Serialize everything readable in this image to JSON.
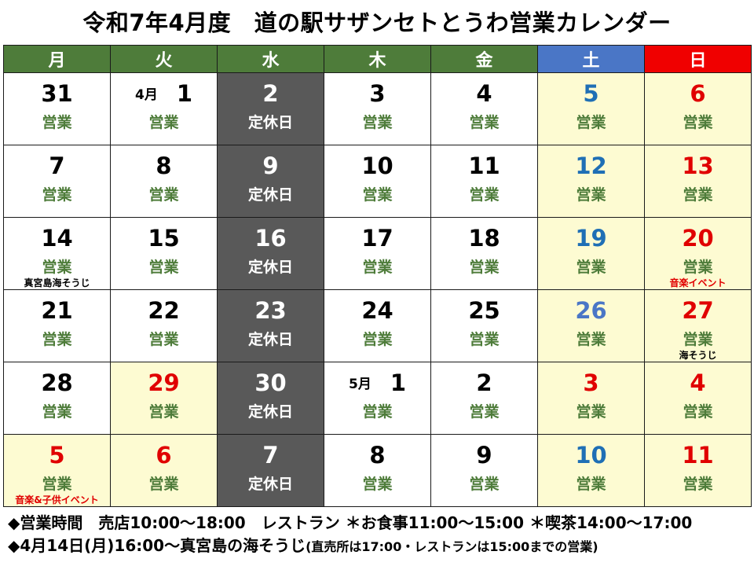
{
  "title": "令和7年4月度　道の駅サザンセトとうわ営業カレンダー",
  "weekdays": [
    "月",
    "火",
    "水",
    "木",
    "金",
    "土",
    "日"
  ],
  "colors": {
    "header_green": "#4e7c3a",
    "header_blue": "#4a76c6",
    "header_red": "#f00000",
    "closed_bg": "#595959",
    "weekend_bg": "#fdfbd2",
    "status_green": "#4e7c3a"
  },
  "weeks": [
    [
      {
        "day": "31",
        "status": "営業",
        "color": "black",
        "bg": "white"
      },
      {
        "month": "4月",
        "day": "1",
        "status": "営業",
        "color": "black",
        "bg": "white"
      },
      {
        "day": "2",
        "status": "定休日",
        "color": "white",
        "bg": "closed"
      },
      {
        "day": "3",
        "status": "営業",
        "color": "black",
        "bg": "white"
      },
      {
        "day": "4",
        "status": "営業",
        "color": "black",
        "bg": "white"
      },
      {
        "day": "5",
        "status": "営業",
        "color": "blue",
        "bg": "yellow"
      },
      {
        "day": "6",
        "status": "営業",
        "color": "red",
        "bg": "yellow"
      }
    ],
    [
      {
        "day": "7",
        "status": "営業",
        "color": "black",
        "bg": "white"
      },
      {
        "day": "8",
        "status": "営業",
        "color": "black",
        "bg": "white"
      },
      {
        "day": "9",
        "status": "定休日",
        "color": "white",
        "bg": "closed"
      },
      {
        "day": "10",
        "status": "営業",
        "color": "black",
        "bg": "white"
      },
      {
        "day": "11",
        "status": "営業",
        "color": "black",
        "bg": "white"
      },
      {
        "day": "12",
        "status": "営業",
        "color": "blue",
        "bg": "yellow"
      },
      {
        "day": "13",
        "status": "営業",
        "color": "red",
        "bg": "yellow"
      }
    ],
    [
      {
        "day": "14",
        "status": "営業",
        "color": "black",
        "bg": "white",
        "note": "真宮島海そうじ",
        "note_color": "black"
      },
      {
        "day": "15",
        "status": "営業",
        "color": "black",
        "bg": "white"
      },
      {
        "day": "16",
        "status": "定休日",
        "color": "white",
        "bg": "closed"
      },
      {
        "day": "17",
        "status": "営業",
        "color": "black",
        "bg": "white"
      },
      {
        "day": "18",
        "status": "営業",
        "color": "black",
        "bg": "white"
      },
      {
        "day": "19",
        "status": "営業",
        "color": "blue",
        "bg": "yellow"
      },
      {
        "day": "20",
        "status": "営業",
        "color": "red",
        "bg": "yellow",
        "note": "音楽イベント",
        "note_color": "red"
      }
    ],
    [
      {
        "day": "21",
        "status": "営業",
        "color": "black",
        "bg": "white"
      },
      {
        "day": "22",
        "status": "営業",
        "color": "black",
        "bg": "white"
      },
      {
        "day": "23",
        "status": "定休日",
        "color": "white",
        "bg": "closed"
      },
      {
        "day": "24",
        "status": "営業",
        "color": "black",
        "bg": "white"
      },
      {
        "day": "25",
        "status": "営業",
        "color": "black",
        "bg": "white"
      },
      {
        "day": "26",
        "status": "営業",
        "color": "steel",
        "bg": "yellow"
      },
      {
        "day": "27",
        "status": "営業",
        "color": "red",
        "bg": "yellow",
        "note": "海そうじ",
        "note_color": "black"
      }
    ],
    [
      {
        "day": "28",
        "status": "営業",
        "color": "black",
        "bg": "white"
      },
      {
        "day": "29",
        "status": "営業",
        "color": "red",
        "bg": "yellow"
      },
      {
        "day": "30",
        "status": "定休日",
        "color": "white",
        "bg": "closed"
      },
      {
        "month": "5月",
        "day": "1",
        "status": "営業",
        "color": "black",
        "bg": "white"
      },
      {
        "day": "2",
        "status": "営業",
        "color": "black",
        "bg": "white"
      },
      {
        "day": "3",
        "status": "営業",
        "color": "red",
        "bg": "yellow"
      },
      {
        "day": "4",
        "status": "営業",
        "color": "red",
        "bg": "yellow"
      }
    ],
    [
      {
        "day": "5",
        "status": "営業",
        "color": "red",
        "bg": "yellow",
        "note": "音楽&子供イベント",
        "note_color": "red"
      },
      {
        "day": "6",
        "status": "営業",
        "color": "red",
        "bg": "yellow"
      },
      {
        "day": "7",
        "status": "定休日",
        "color": "white",
        "bg": "closed"
      },
      {
        "day": "8",
        "status": "営業",
        "color": "black",
        "bg": "white"
      },
      {
        "day": "9",
        "status": "営業",
        "color": "black",
        "bg": "white"
      },
      {
        "day": "10",
        "status": "営業",
        "color": "blue",
        "bg": "yellow"
      },
      {
        "day": "11",
        "status": "営業",
        "color": "red",
        "bg": "yellow"
      }
    ]
  ],
  "footer": {
    "line1": "◆営業時間　売店10:00～18:00　レストラン ＊お食事11:00～15:00 ＊喫茶14:00～17:00",
    "line2_main": "◆4月14日(月)16:00～真宮島の海そうじ",
    "line2_small": "(直売所は17:00・レストランは15:00までの営業)"
  }
}
